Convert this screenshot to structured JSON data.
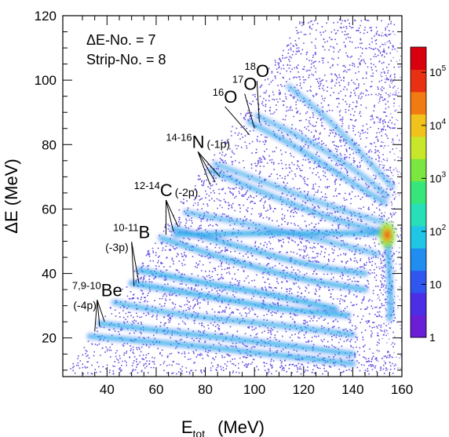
{
  "chart_data": {
    "type": "heatmap",
    "xlabel": {
      "main": "E",
      "sub": "tot",
      "unit": "(MeV)"
    },
    "ylabel": "ΔE (MeV)",
    "xlim": [
      22,
      160
    ],
    "ylim": [
      8,
      120
    ],
    "x_ticks": [
      40,
      60,
      80,
      100,
      120,
      140,
      160
    ],
    "y_ticks": [
      20,
      40,
      60,
      80,
      100,
      120
    ],
    "info_lines": [
      "ΔE-No. = 7",
      "Strip-No. = 8"
    ],
    "color_scale": {
      "log": true,
      "min": 1,
      "max": 300000,
      "labels": [
        {
          "value": 1,
          "mantissa": "1",
          "exp": ""
        },
        {
          "value": 10,
          "mantissa": "10",
          "exp": ""
        },
        {
          "value": 100,
          "mantissa": "10",
          "exp": "2"
        },
        {
          "value": 1000,
          "mantissa": "10",
          "exp": "3"
        },
        {
          "value": 10000,
          "mantissa": "10",
          "exp": "4"
        },
        {
          "value": 100000,
          "mantissa": "10",
          "exp": "5"
        }
      ],
      "colors": [
        "#6a1ed6",
        "#4b2ee6",
        "#2f57f0",
        "#1f8ef0",
        "#1fc6e6",
        "#27e0b8",
        "#36e67a",
        "#7ae640",
        "#c8e62a",
        "#f2c21c",
        "#f27a12",
        "#e83012",
        "#d8000e"
      ]
    },
    "background_color": "#4a2fd9",
    "band_color": "#1fc6e6",
    "diagonal_edge": {
      "start": [
        24,
        10
      ],
      "end": [
        117,
        117
      ]
    },
    "hotspot": {
      "x": 154,
      "y": 52,
      "color": "#e83012"
    },
    "bands": [
      {
        "points": [
          [
            33,
            20.5
          ],
          [
            70,
            18
          ],
          [
            100,
            15.5
          ],
          [
            140,
            12
          ]
        ],
        "strength": 0.8
      },
      {
        "points": [
          [
            37,
            24.5
          ],
          [
            70,
            21.5
          ],
          [
            110,
            18
          ],
          [
            140,
            15
          ]
        ],
        "strength": 0.8
      },
      {
        "points": [
          [
            43,
            31
          ],
          [
            70,
            27
          ],
          [
            110,
            24
          ],
          [
            140,
            21
          ]
        ],
        "strength": 0.7
      },
      {
        "points": [
          [
            50,
            37
          ],
          [
            80,
            33
          ],
          [
            110,
            29
          ],
          [
            138,
            27
          ]
        ],
        "strength": 0.9
      },
      {
        "points": [
          [
            53,
            41
          ],
          [
            80,
            37
          ],
          [
            110,
            33
          ],
          [
            133,
            29
          ]
        ],
        "strength": 0.9
      },
      {
        "points": [
          [
            62,
            51
          ],
          [
            90,
            44
          ],
          [
            120,
            38
          ],
          [
            145,
            35
          ]
        ],
        "strength": 0.8
      },
      {
        "points": [
          [
            67,
            54
          ],
          [
            95,
            48
          ],
          [
            125,
            42
          ],
          [
            145,
            40
          ]
        ],
        "strength": 0.8
      },
      {
        "points": [
          [
            72,
            59
          ],
          [
            100,
            55
          ],
          [
            130,
            50
          ],
          [
            150,
            46
          ]
        ],
        "strength": 0.6
      },
      {
        "points": [
          [
            82,
            72
          ],
          [
            110,
            63
          ],
          [
            135,
            56
          ],
          [
            152,
            53
          ]
        ],
        "strength": 0.7
      },
      {
        "points": [
          [
            84,
            74
          ],
          [
            112,
            66
          ],
          [
            138,
            59
          ],
          [
            152,
            56
          ]
        ],
        "strength": 0.6
      },
      {
        "points": [
          [
            98,
            87
          ],
          [
            120,
            78
          ],
          [
            140,
            68
          ],
          [
            153,
            62
          ]
        ],
        "strength": 0.7
      },
      {
        "points": [
          [
            101,
            89
          ],
          [
            125,
            80
          ],
          [
            145,
            70
          ],
          [
            154,
            64
          ]
        ],
        "strength": 0.6
      },
      {
        "points": [
          [
            114,
            98
          ],
          [
            130,
            88
          ],
          [
            145,
            76
          ],
          [
            156,
            67
          ]
        ],
        "strength": 0.6
      },
      {
        "points": [
          [
            68,
            52
          ],
          [
            100,
            52.5
          ],
          [
            130,
            52.5
          ],
          [
            154,
            52.5
          ]
        ],
        "strength": 0.9
      },
      {
        "points": [
          [
            154,
            52
          ],
          [
            155,
            40
          ],
          [
            155.5,
            30
          ],
          [
            155,
            26
          ]
        ],
        "strength": 0.8
      }
    ],
    "annotations": [
      {
        "sup": "18",
        "main": "O",
        "sub": "",
        "label_at": [
          101,
          101
        ],
        "arrow_tips": [
          [
            102,
            87
          ]
        ]
      },
      {
        "sup": "17",
        "main": "O",
        "sub": "",
        "label_at": [
          96,
          97
        ],
        "arrow_tips": [
          [
            100,
            85
          ]
        ]
      },
      {
        "sup": "16",
        "main": "O",
        "sub": "",
        "label_at": [
          88,
          93
        ],
        "arrow_tips": [
          [
            98,
            83
          ]
        ]
      },
      {
        "sup": "14-16",
        "main": "N",
        "sub": "(-1p)",
        "label_at": [
          77,
          79
        ],
        "arrow_tips": [
          [
            82,
            67.5
          ],
          [
            84,
            68.5
          ],
          [
            86,
            70
          ]
        ]
      },
      {
        "sup": "12-14",
        "main": "C",
        "sub": "(-2p)",
        "label_at": [
          64,
          64
        ],
        "arrow_tips": [
          [
            64,
            52
          ],
          [
            67,
            53
          ],
          [
            69,
            54.5
          ]
        ]
      },
      {
        "sup": "10-11",
        "main": "B",
        "sub": "",
        "label_at": [
          50,
          51
        ],
        "arrow_tips": [
          [
            51,
            36
          ],
          [
            53,
            37
          ]
        ]
      },
      {
        "sup": "",
        "main": "",
        "sub": "(-3p)",
        "label_at": [
          44,
          47
        ],
        "arrow_tips": []
      },
      {
        "sup": "7,9-10",
        "main": "Be",
        "sub": "",
        "label_at": [
          36,
          33
        ],
        "arrow_tips": [
          [
            35,
            22
          ],
          [
            37,
            23.5
          ],
          [
            39,
            25
          ]
        ]
      },
      {
        "sup": "",
        "main": "",
        "sub": "(-4p)",
        "label_at": [
          31,
          29
        ],
        "arrow_tips": []
      }
    ]
  }
}
